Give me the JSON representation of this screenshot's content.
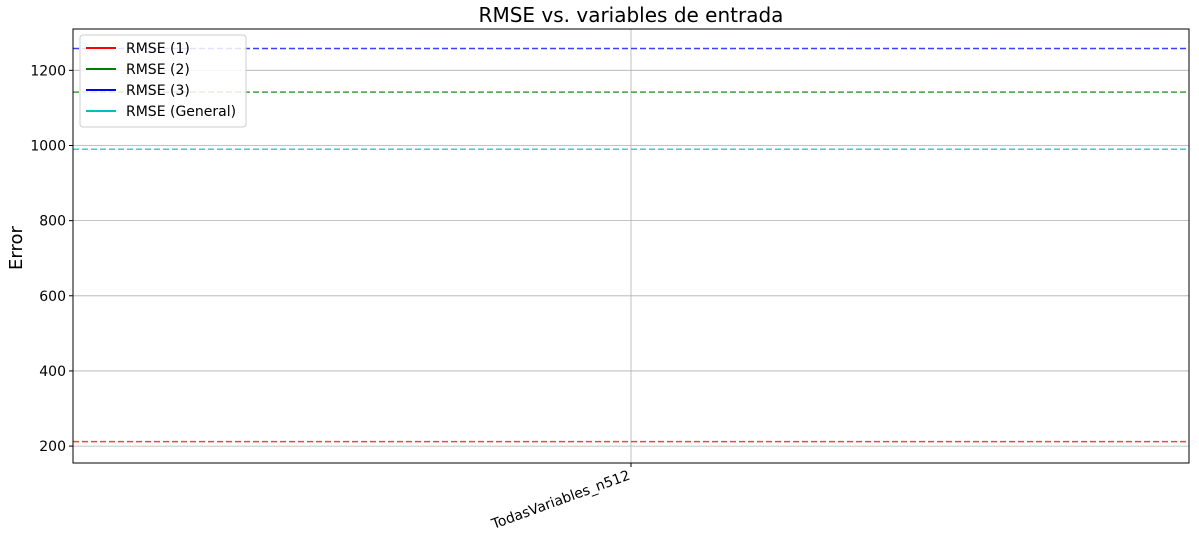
{
  "chart_data": {
    "type": "line",
    "title": "RMSE vs. variables de entrada",
    "xlabel": "",
    "ylabel": "Error",
    "categories": [
      "TodasVariables_n512"
    ],
    "ylim": [
      155,
      1310
    ],
    "yticks": [
      200,
      400,
      600,
      800,
      1000,
      1200
    ],
    "grid": true,
    "legend_position": "top-left",
    "series": [
      {
        "name": "RMSE (1)",
        "value": 212,
        "color": "#ff0000",
        "style": "dashed"
      },
      {
        "name": "RMSE (2)",
        "value": 1142,
        "color": "#008000",
        "style": "dashed"
      },
      {
        "name": "RMSE (3)",
        "value": 1258,
        "color": "#0000ff",
        "style": "dashed"
      },
      {
        "name": "RMSE (General)",
        "value": 990,
        "color": "#00bfbf",
        "style": "dashed"
      }
    ]
  }
}
